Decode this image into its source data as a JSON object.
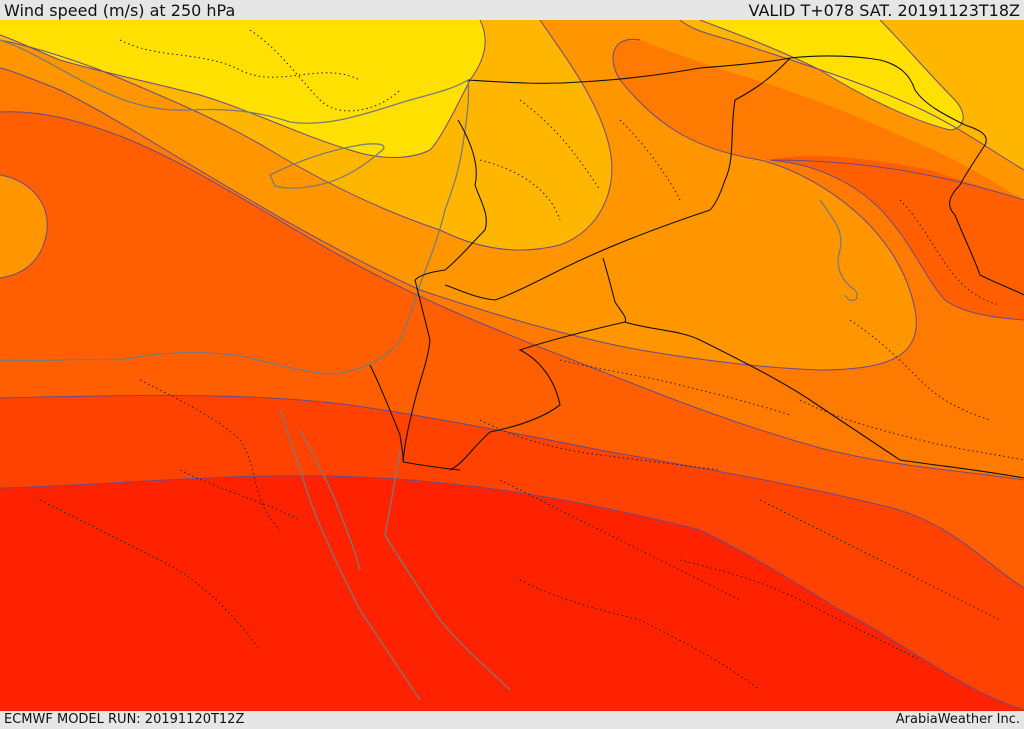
{
  "header": {
    "title": "Wind speed (m/s) at 250 hPa",
    "valid": "VALID T+078 SAT. 20191123T18Z"
  },
  "footer": {
    "model_run": "ECMWF MODEL RUN: 20191120T12Z",
    "credit": "ArabiaWeather Inc."
  },
  "colors": {
    "band_1_slowest": "#ffe000",
    "band_2": "#ffb600",
    "band_3": "#ff9600",
    "band_4": "#ff7a00",
    "band_5": "#ff5f00",
    "band_6": "#ff4200",
    "band_7_fastest": "#ff2200",
    "contour": "#6a4a8a",
    "land_border": "#111111",
    "admin_border": "#222222",
    "coastline": "#777777"
  }
}
